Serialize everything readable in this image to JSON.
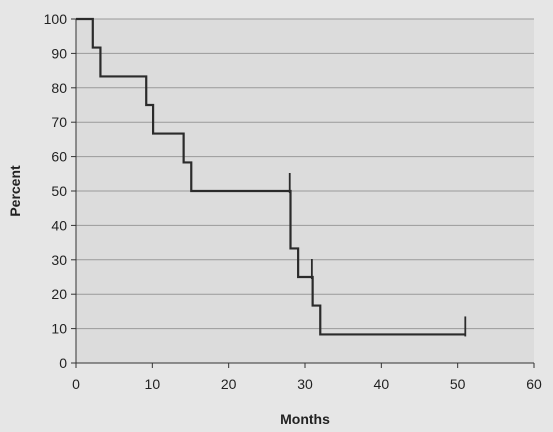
{
  "chart_data": {
    "type": "line",
    "title": "",
    "xlabel": "Months",
    "ylabel": "Percent",
    "xlim": [
      0,
      60
    ],
    "ylim": [
      0,
      100
    ],
    "x_ticks": [
      0,
      10,
      20,
      30,
      40,
      50,
      60
    ],
    "y_ticks": [
      0,
      10,
      20,
      30,
      40,
      50,
      60,
      70,
      80,
      90,
      100
    ],
    "grid": "horizontal",
    "legend": "none",
    "series": [
      {
        "step": "post",
        "x": [
          0,
          2.2,
          3.2,
          9.2,
          10.1,
          14.1,
          15.1,
          28.1,
          29.1,
          31.0,
          32.0,
          51.0
        ],
        "y": [
          100,
          91.7,
          83.3,
          75.0,
          66.7,
          58.3,
          50.0,
          33.3,
          25.0,
          16.7,
          8.3,
          8.3
        ]
      }
    ],
    "censor_marks": [
      {
        "x": 28.0,
        "y": 50.0
      },
      {
        "x": 30.9,
        "y": 25.0
      },
      {
        "x": 51.0,
        "y": 8.3
      }
    ],
    "colors": {
      "background": "#e6e6e6",
      "plot_area": "#dcdcdc",
      "gridline": "#9a9a9a",
      "line": "#2b2b2b",
      "axis": "#333333"
    }
  }
}
